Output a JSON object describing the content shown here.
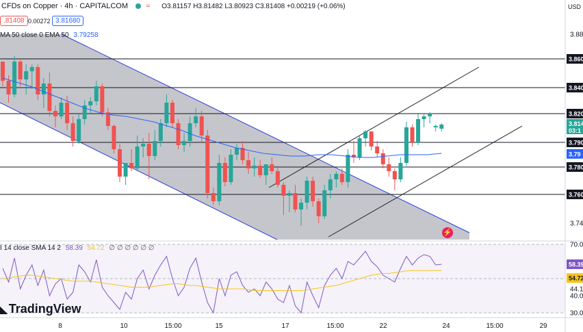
{
  "header": {
    "symbol_title": "CFDs on Copper · 4h · CAPITALCOM",
    "ohlc": "O3.81157  H3.81482  L3.80923  C3.81408  +0.00219 (+0.06%)",
    "sell_price": ".81408",
    "spread": "0.00272",
    "buy_price": "3.81680",
    "indicator_line": "MA 50 close 0 EMA 50",
    "ema_value": "3.79258",
    "currency": "USD"
  },
  "rsi_header": {
    "label": "I 14 close SMA 14 2",
    "rsi_value": "58.39",
    "sma_value": "54.72",
    "extras": "∅ ∅ ∅ ∅ ∅ ∅"
  },
  "logo_text": "TradingView",
  "colors": {
    "up": "#26a69a",
    "down": "#ef5350",
    "ema": "#2962ff",
    "rsi": "#7e57c2",
    "rsi_sma": "#f5c518",
    "channel_fill": "#9598a1",
    "channel_edge": "#2a3bd6"
  },
  "price_axis": {
    "ticks": [
      "3.880",
      "3.860",
      "3.840",
      "3.820",
      "3.810",
      "3.790",
      "3.780",
      "3.760",
      "3.740"
    ],
    "current_price": "3.814",
    "countdown": "03:1",
    "ema_tag": "3.79"
  },
  "rsi_axis": {
    "ticks": [
      "70.00",
      "59.6",
      "50.00",
      "44.1",
      "40.00",
      "30.00"
    ],
    "rsi_tag": "58.39",
    "sma_tag": "54.72"
  },
  "time_axis": [
    "8",
    "10",
    "15:00",
    "15",
    "17",
    "15:00",
    "22",
    "24",
    "15:00",
    "29"
  ],
  "chart_data": {
    "type": "candlestick",
    "title": "CFDs on Copper · 4h · CAPITALCOM",
    "ylim": [
      3.73,
      3.895
    ],
    "horizontal_levels": [
      3.862,
      3.841,
      3.822,
      3.801,
      3.783,
      3.763
    ],
    "ohlc": [
      [
        3.86,
        3.86,
        3.842,
        3.846
      ],
      [
        3.846,
        3.85,
        3.83,
        3.836
      ],
      [
        3.836,
        3.864,
        3.834,
        3.86
      ],
      [
        3.86,
        3.862,
        3.842,
        3.847
      ],
      [
        3.847,
        3.858,
        3.836,
        3.853
      ],
      [
        3.853,
        3.858,
        3.84,
        3.856
      ],
      [
        3.856,
        3.858,
        3.832,
        3.836
      ],
      [
        3.836,
        3.848,
        3.826,
        3.844
      ],
      [
        3.844,
        3.852,
        3.82,
        3.824
      ],
      [
        3.824,
        3.828,
        3.812,
        3.82
      ],
      [
        3.82,
        3.834,
        3.818,
        3.83
      ],
      [
        3.83,
        3.835,
        3.81,
        3.815
      ],
      [
        3.815,
        3.82,
        3.798,
        3.802
      ],
      [
        3.802,
        3.822,
        3.8,
        3.818
      ],
      [
        3.818,
        3.832,
        3.814,
        3.828
      ],
      [
        3.828,
        3.834,
        3.822,
        3.831
      ],
      [
        3.831,
        3.846,
        3.828,
        3.842
      ],
      [
        3.842,
        3.844,
        3.82,
        3.823
      ],
      [
        3.823,
        3.826,
        3.81,
        3.813
      ],
      [
        3.813,
        3.814,
        3.793,
        3.796
      ],
      [
        3.796,
        3.8,
        3.772,
        3.776
      ],
      [
        3.776,
        3.786,
        3.77,
        3.786
      ],
      [
        3.786,
        3.796,
        3.78,
        3.782
      ],
      [
        3.782,
        3.806,
        3.78,
        3.798
      ],
      [
        3.798,
        3.804,
        3.79,
        3.8
      ],
      [
        3.8,
        3.808,
        3.774,
        3.791
      ],
      [
        3.791,
        3.81,
        3.788,
        3.802
      ],
      [
        3.802,
        3.818,
        3.798,
        3.815
      ],
      [
        3.815,
        3.836,
        3.812,
        3.83
      ],
      [
        3.83,
        3.832,
        3.812,
        3.815
      ],
      [
        3.815,
        3.818,
        3.796,
        3.799
      ],
      [
        3.799,
        3.808,
        3.794,
        3.802
      ],
      [
        3.802,
        3.82,
        3.798,
        3.815
      ],
      [
        3.815,
        3.826,
        3.812,
        3.82
      ],
      [
        3.82,
        3.824,
        3.801,
        3.806
      ],
      [
        3.806,
        3.81,
        3.76,
        3.764
      ],
      [
        3.764,
        3.768,
        3.755,
        3.758
      ],
      [
        3.758,
        3.792,
        3.755,
        3.786
      ],
      [
        3.786,
        3.79,
        3.769,
        3.772
      ],
      [
        3.772,
        3.796,
        3.77,
        3.792
      ],
      [
        3.792,
        3.8,
        3.788,
        3.797
      ],
      [
        3.797,
        3.802,
        3.785,
        3.788
      ],
      [
        3.788,
        3.794,
        3.778,
        3.782
      ],
      [
        3.782,
        3.79,
        3.776,
        3.784
      ],
      [
        3.784,
        3.788,
        3.775,
        3.777
      ],
      [
        3.777,
        3.785,
        3.77,
        3.785
      ],
      [
        3.785,
        3.79,
        3.778,
        3.78
      ],
      [
        3.78,
        3.784,
        3.768,
        3.77
      ],
      [
        3.77,
        3.772,
        3.748,
        3.762
      ],
      [
        3.762,
        3.766,
        3.75,
        3.764
      ],
      [
        3.764,
        3.77,
        3.75,
        3.752
      ],
      [
        3.752,
        3.76,
        3.74,
        3.757
      ],
      [
        3.757,
        3.776,
        3.752,
        3.773
      ],
      [
        3.773,
        3.776,
        3.754,
        3.758
      ],
      [
        3.758,
        3.76,
        3.742,
        3.747
      ],
      [
        3.747,
        3.77,
        3.745,
        3.766
      ],
      [
        3.766,
        3.778,
        3.76,
        3.774
      ],
      [
        3.774,
        3.78,
        3.768,
        3.778
      ],
      [
        3.778,
        3.782,
        3.77,
        3.772
      ],
      [
        3.772,
        3.796,
        3.768,
        3.792
      ],
      [
        3.792,
        3.802,
        3.786,
        3.79
      ],
      [
        3.79,
        3.806,
        3.788,
        3.804
      ],
      [
        3.804,
        3.81,
        3.798,
        3.809
      ],
      [
        3.809,
        3.808,
        3.795,
        3.798
      ],
      [
        3.798,
        3.802,
        3.79,
        3.793
      ],
      [
        3.793,
        3.796,
        3.782,
        3.785
      ],
      [
        3.785,
        3.79,
        3.776,
        3.78
      ],
      [
        3.78,
        3.782,
        3.766,
        3.774
      ],
      [
        3.774,
        3.79,
        3.772,
        3.786
      ],
      [
        3.786,
        3.816,
        3.784,
        3.812
      ],
      [
        3.812,
        3.814,
        3.798,
        3.801
      ],
      [
        3.801,
        3.822,
        3.799,
        3.818
      ],
      [
        3.818,
        3.822,
        3.812,
        3.82
      ],
      [
        3.82,
        3.823,
        3.815,
        3.822
      ],
      [
        3.812,
        3.814,
        3.809,
        3.813
      ],
      [
        3.811,
        3.815,
        3.809,
        3.814
      ]
    ],
    "ema50": [
      3.848,
      3.845,
      3.842,
      3.838,
      3.834,
      3.83,
      3.826,
      3.823,
      3.821,
      3.82,
      3.818,
      3.816,
      3.813,
      3.81,
      3.806,
      3.803,
      3.8,
      3.797,
      3.795,
      3.793,
      3.792,
      3.791,
      3.791,
      3.792,
      3.792,
      3.791,
      3.79,
      3.79,
      3.791,
      3.792,
      3.792,
      3.792,
      3.793
    ],
    "rsi": [
      56,
      48,
      62,
      44,
      52,
      58,
      46,
      55,
      40,
      47,
      50,
      38,
      42,
      58,
      54,
      48,
      61,
      45,
      40,
      36,
      32,
      42,
      38,
      50,
      55,
      44,
      52,
      58,
      63,
      50,
      40,
      45,
      56,
      62,
      48,
      36,
      30,
      50,
      40,
      52,
      54,
      46,
      42,
      44,
      40,
      48,
      44,
      38,
      36,
      46,
      34,
      30,
      48,
      40,
      33,
      46,
      52,
      56,
      50,
      60,
      58,
      62,
      66,
      60,
      57,
      52,
      50,
      48,
      56,
      63,
      58,
      62,
      64,
      63,
      58,
      58.39
    ],
    "rsi_sma": [
      50,
      50.5,
      51,
      51.5,
      52,
      52,
      51.5,
      51,
      50.5,
      50,
      49.5,
      49,
      48.5,
      48.5,
      48.5,
      48.5,
      48,
      47.5,
      47,
      46.5,
      46,
      45.5,
      45,
      45,
      45,
      45,
      45.5,
      46,
      46.5,
      47,
      47,
      46.5,
      46,
      46,
      45.5,
      45,
      44.5,
      44,
      44,
      44,
      44,
      44,
      43.5,
      43,
      43,
      43,
      43,
      43,
      43,
      43,
      43,
      43,
      43.5,
      44,
      44.5,
      45,
      45.5,
      46,
      47,
      48,
      49,
      50,
      51,
      52,
      52.5,
      53,
      53,
      53.5,
      54,
      54.5,
      54.7,
      54.72,
      54.72,
      54.72,
      54.72,
      54.72
    ]
  }
}
